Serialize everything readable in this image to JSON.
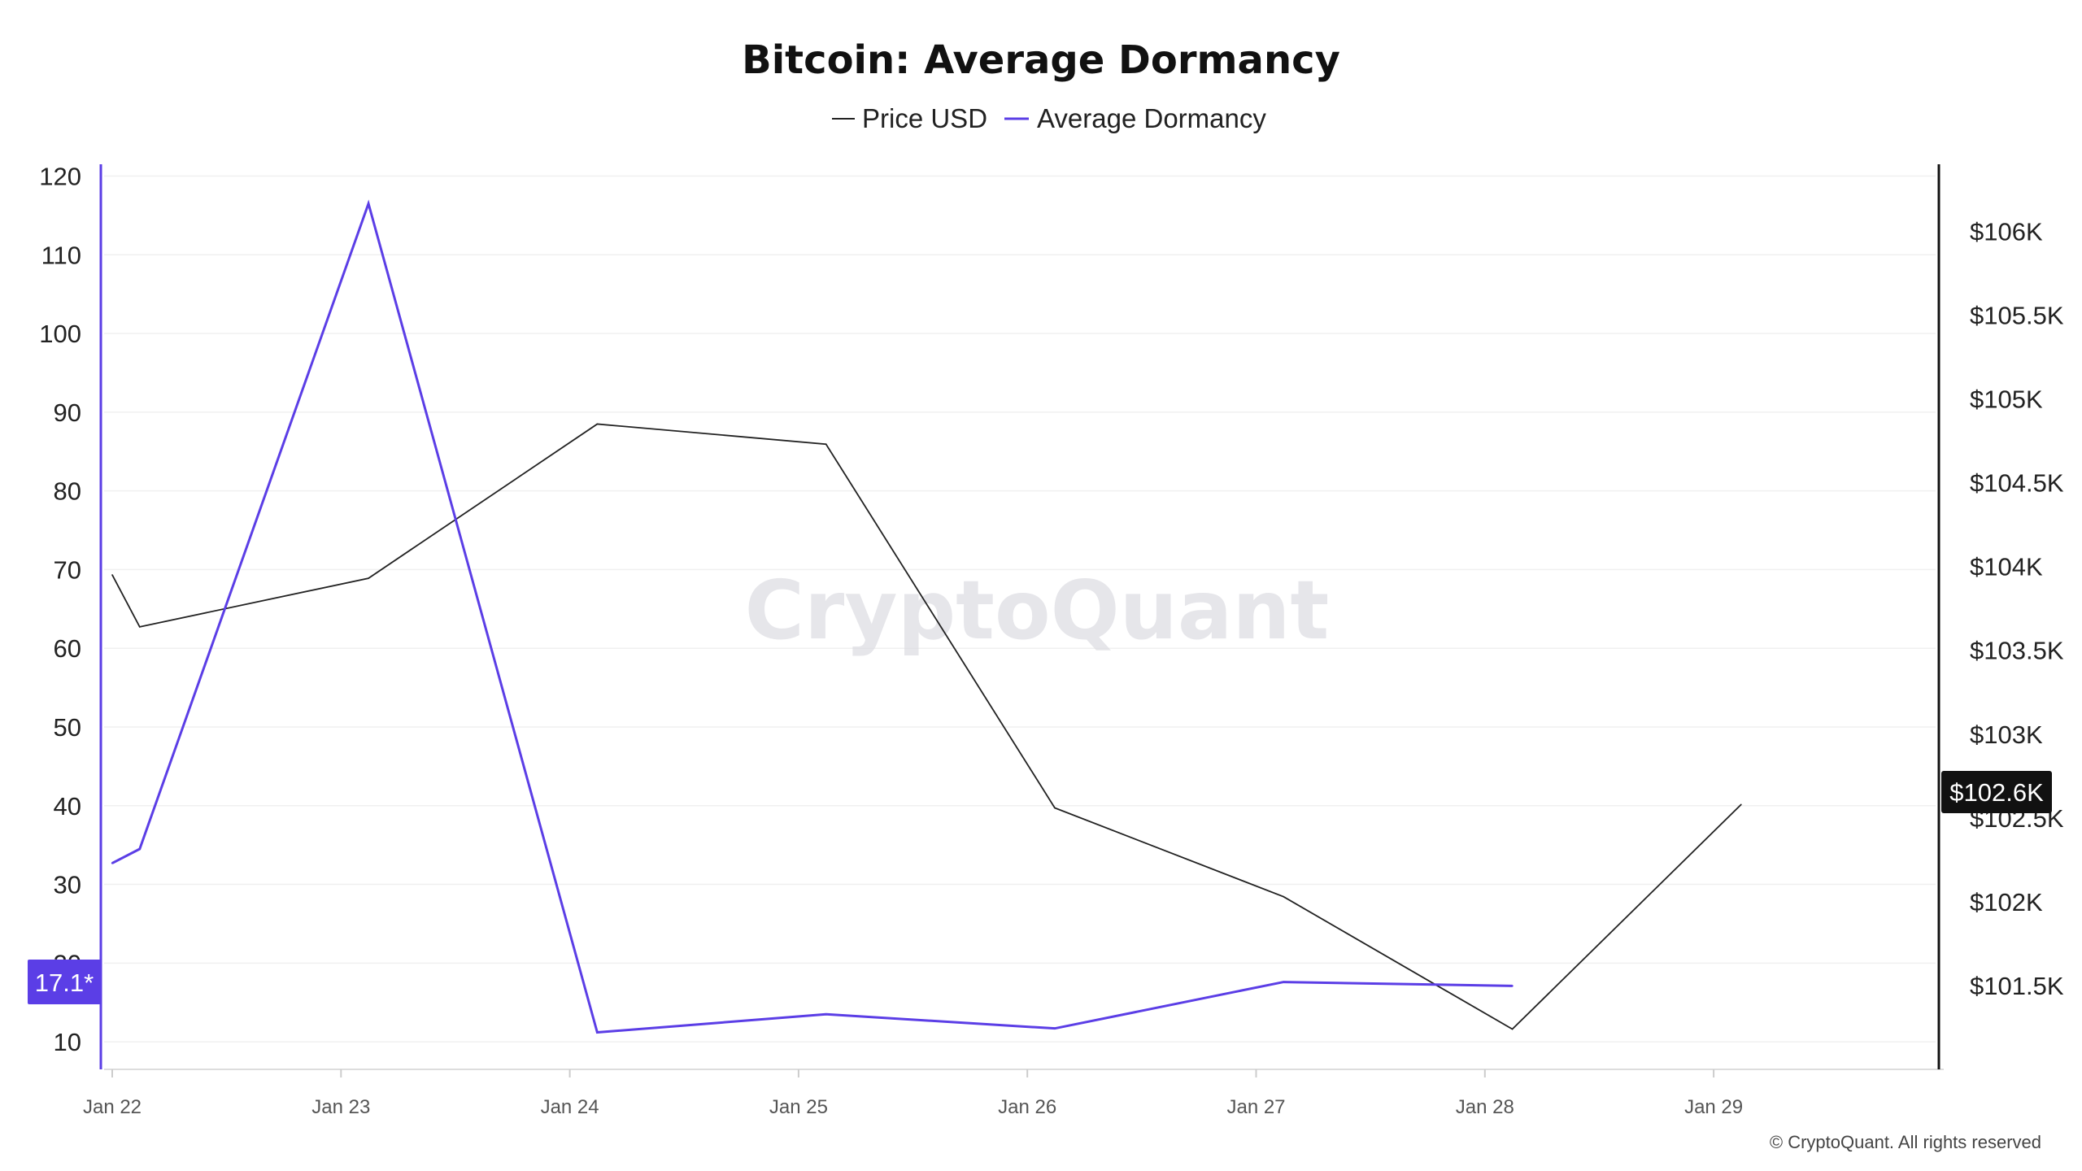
{
  "title": "Bitcoin: Average Dormancy",
  "watermark": "CryptoQuant",
  "copyright": "© CryptoQuant. All rights reserved",
  "colors": {
    "price": "#222222",
    "dormancy": "#5b3ee6",
    "grid": "#f0f0f0",
    "right_axis": "#111111",
    "badge_price_bg": "#111111",
    "badge_dormancy_bg": "#5b3ee6"
  },
  "chart_data": {
    "type": "line",
    "title": "Bitcoin: Average Dormancy",
    "legend_position": "top-center",
    "grid": true,
    "x_ticks": [
      "Jan 22",
      "Jan 23",
      "Jan 24",
      "Jan 25",
      "Jan 26",
      "Jan 27",
      "Jan 28",
      "Jan 29"
    ],
    "y_left": {
      "range": [
        6.5,
        121.5
      ],
      "ticks": [
        "10",
        "20",
        "30",
        "40",
        "50",
        "60",
        "70",
        "80",
        "90",
        "100",
        "110",
        "120"
      ],
      "tick_values": [
        10,
        20,
        30,
        40,
        50,
        60,
        70,
        80,
        90,
        100,
        110,
        120
      ]
    },
    "y_right": {
      "range": [
        101000,
        106400
      ],
      "ticks": [
        "$101.5K",
        "$102K",
        "$102.5K",
        "$103K",
        "$103.5K",
        "$104K",
        "$104.5K",
        "$105K",
        "$105.5K",
        "$106K"
      ],
      "tick_values": [
        101500,
        102000,
        102500,
        103000,
        103500,
        104000,
        104500,
        105000,
        105500,
        106000
      ]
    },
    "series": [
      {
        "name": "Price USD",
        "axis": "right",
        "x": [
          0,
          0.12,
          1.12,
          2.12,
          3.12,
          4.12,
          5.12,
          6.12,
          7.12
        ],
        "values": [
          103950,
          103640,
          103930,
          104850,
          104730,
          102560,
          102030,
          101240,
          102580
        ]
      },
      {
        "name": "Average Dormancy",
        "axis": "left",
        "x": [
          0,
          0.12,
          1.12,
          2.12,
          3.12,
          4.12,
          5.12,
          6.12
        ],
        "values": [
          32.7,
          34.5,
          116.5,
          11.2,
          13.5,
          11.7,
          17.6,
          17.1
        ]
      }
    ],
    "badges": {
      "price": "$102.6K",
      "dormancy": "17.1*"
    }
  }
}
